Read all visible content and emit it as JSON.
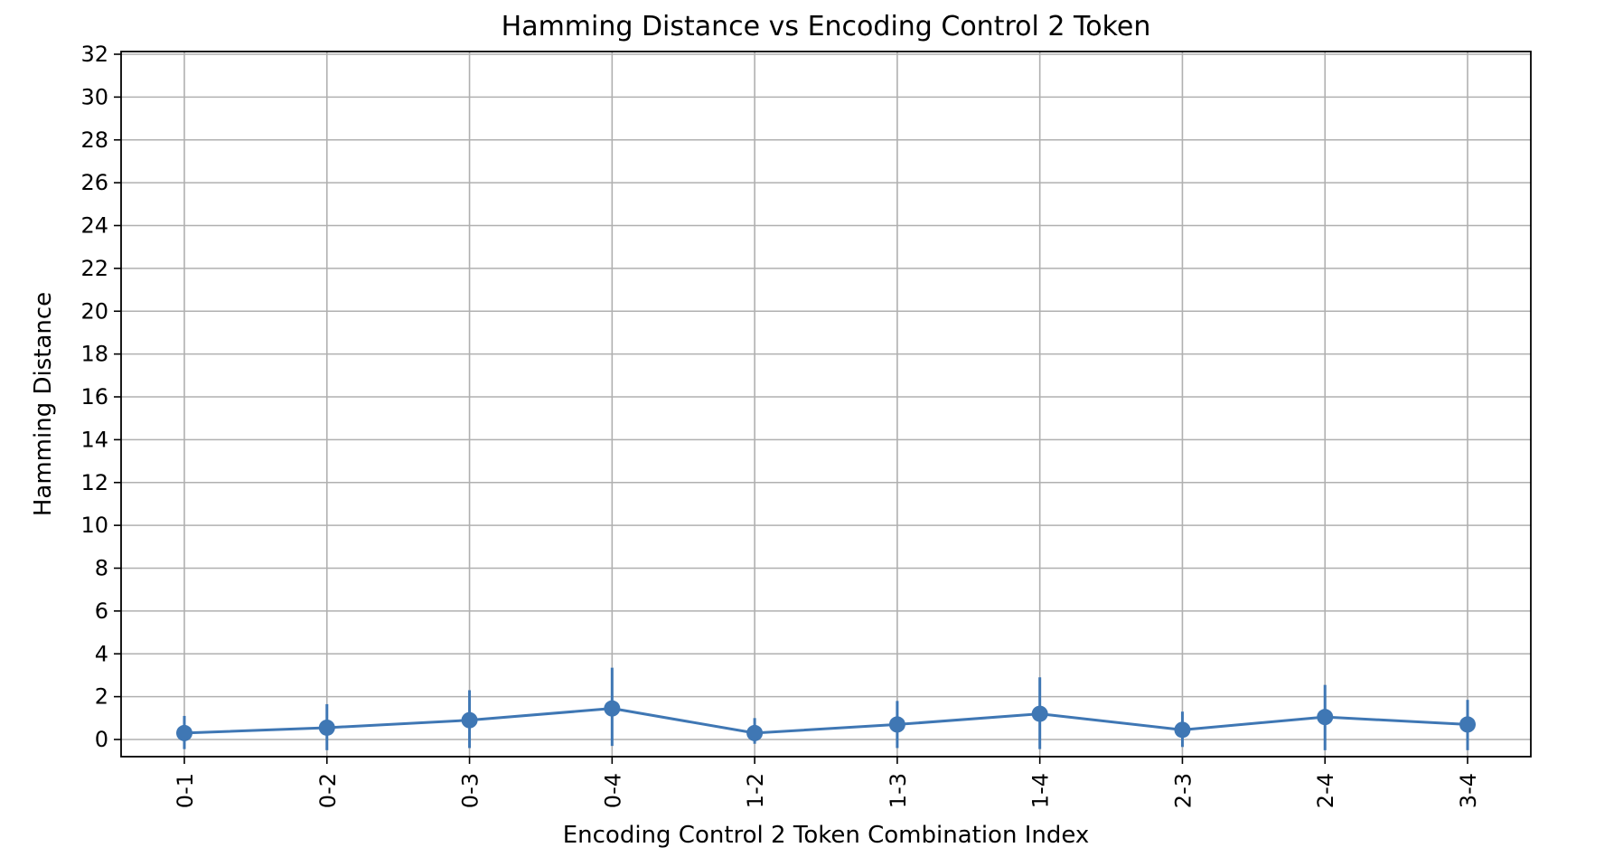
{
  "chart_data": {
    "type": "line",
    "title": "Hamming Distance vs Encoding Control 2 Token",
    "xlabel": "Encoding Control 2 Token Combination Index",
    "ylabel": "Hamming Distance",
    "categories": [
      "0-1",
      "0-2",
      "0-3",
      "0-4",
      "1-2",
      "1-3",
      "1-4",
      "2-3",
      "2-4",
      "3-4"
    ],
    "series": [
      {
        "values": [
          0.3,
          0.55,
          0.9,
          1.45,
          0.3,
          0.7,
          1.2,
          0.45,
          1.05,
          0.7
        ],
        "err_low": [
          -0.45,
          -0.5,
          -0.4,
          -0.3,
          -0.2,
          -0.4,
          -0.45,
          -0.35,
          -0.5,
          -0.5
        ],
        "err_high": [
          1.1,
          1.65,
          2.3,
          3.35,
          1.0,
          1.8,
          2.9,
          1.3,
          2.55,
          1.85
        ]
      }
    ],
    "yticks": [
      0,
      2,
      4,
      6,
      8,
      10,
      12,
      14,
      16,
      18,
      20,
      22,
      24,
      26,
      28,
      30,
      32
    ],
    "ylim": [
      -0.75,
      32
    ],
    "grid": true,
    "line_color": "#3f77b4"
  }
}
